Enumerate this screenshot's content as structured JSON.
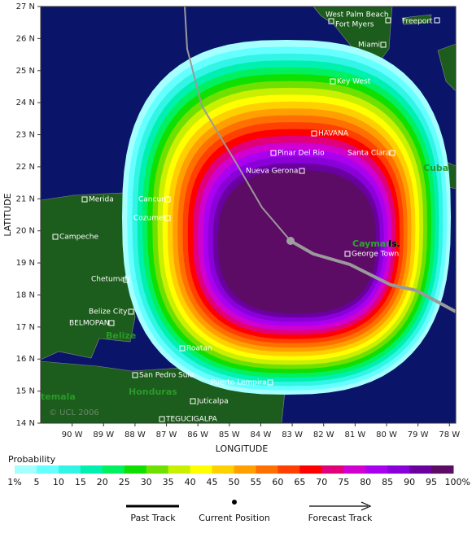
{
  "map": {
    "x_title": "LONGITUDE",
    "y_title": "LATITUDE",
    "xlim": [
      -91,
      -77.8
    ],
    "ylim": [
      14,
      27
    ],
    "xticks": [
      {
        "value": -90,
        "label": "90 W"
      },
      {
        "value": -89,
        "label": "89 W"
      },
      {
        "value": -88,
        "label": "88 W"
      },
      {
        "value": -87,
        "label": "87 W"
      },
      {
        "value": -86,
        "label": "86 W"
      },
      {
        "value": -85,
        "label": "85 W"
      },
      {
        "value": -84,
        "label": "84 W"
      },
      {
        "value": -83,
        "label": "83 W"
      },
      {
        "value": -82,
        "label": "82 W"
      },
      {
        "value": -81,
        "label": "81 W"
      },
      {
        "value": -80,
        "label": "80 W"
      },
      {
        "value": -79,
        "label": "79 W"
      },
      {
        "value": -78,
        "label": "78 W"
      }
    ],
    "yticks": [
      {
        "value": 14,
        "label": "14 N"
      },
      {
        "value": 15,
        "label": "15 N"
      },
      {
        "value": 16,
        "label": "16 N"
      },
      {
        "value": 17,
        "label": "17 N"
      },
      {
        "value": 18,
        "label": "18 N"
      },
      {
        "value": 19,
        "label": "19 N"
      },
      {
        "value": 20,
        "label": "20 N"
      },
      {
        "value": 21,
        "label": "21 N"
      },
      {
        "value": 22,
        "label": "22 N"
      },
      {
        "value": 23,
        "label": "23 N"
      },
      {
        "value": 24,
        "label": "24 N"
      },
      {
        "value": 25,
        "label": "25 N"
      },
      {
        "value": 26,
        "label": "26 N"
      },
      {
        "value": 27,
        "label": "27 N"
      }
    ],
    "copyright": "© UCL 2006"
  },
  "places": [
    "West Palm Beach",
    "Fort Myers",
    "Freeport",
    "Miami",
    "Key West",
    "HAVANA",
    "Pinar Del Rio",
    "Santa Clara",
    "Nueva Gerona",
    "Merida",
    "Cancun",
    "Cozumel",
    "Campeche",
    "George Town",
    "Chetumal",
    "Belize City",
    "BELMOPAN",
    "Roatan",
    "San Pedro Sula",
    "Puerto Lempira",
    "Juticalpa",
    "TEGUCIGALPA"
  ],
  "regions": [
    "Cuba",
    "Caymans",
    "Is.",
    "Belize",
    "Honduras",
    "temala"
  ],
  "legend": {
    "title": "Probability",
    "labels": [
      "1%",
      "5",
      "10",
      "15",
      "20",
      "25",
      "30",
      "35",
      "40",
      "45",
      "50",
      "55",
      "60",
      "65",
      "70",
      "75",
      "80",
      "85",
      "90",
      "95",
      "100%"
    ],
    "colors": [
      "#a6ffff",
      "#66ffff",
      "#33f5e6",
      "#00f0b0",
      "#00f060",
      "#10e000",
      "#70e000",
      "#c8f000",
      "#ffff00",
      "#ffd000",
      "#ffa000",
      "#ff7000",
      "#ff4000",
      "#ff0000",
      "#e0007a",
      "#d000d0",
      "#aa00f0",
      "#8a00d8",
      "#6a00a0",
      "#5c0c64"
    ],
    "items": [
      "Past Track",
      "Current Position",
      "Forecast Track"
    ]
  }
}
